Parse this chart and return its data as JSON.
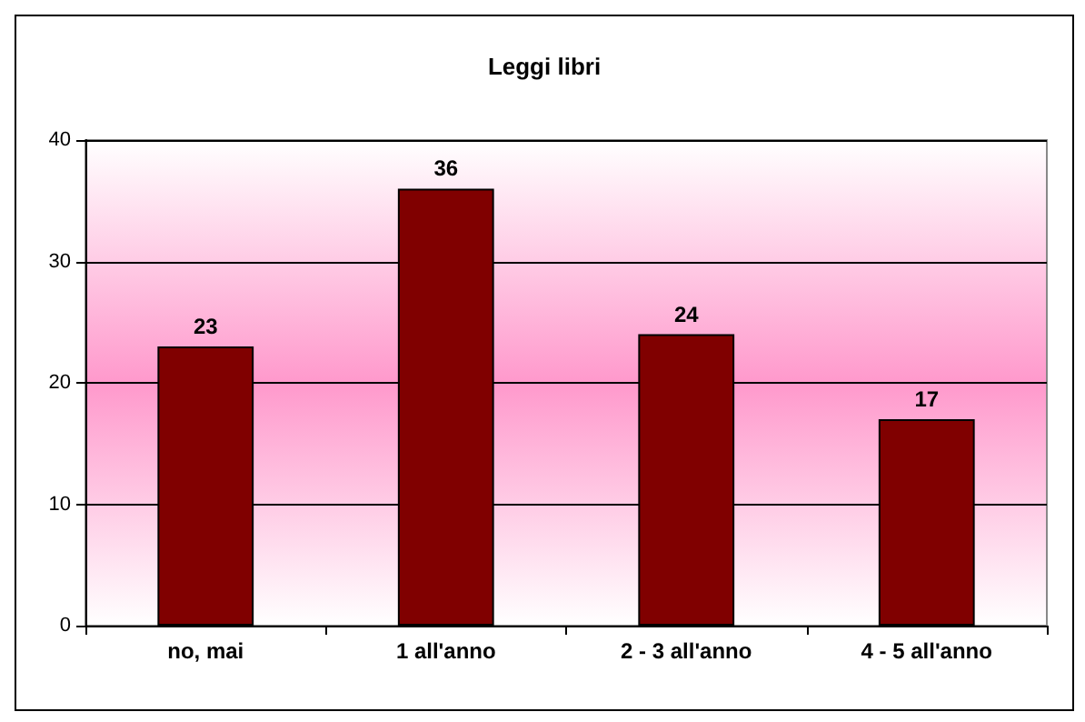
{
  "chart_data": {
    "type": "bar",
    "title": "Leggi libri",
    "categories": [
      "no, mai",
      "1 all'anno",
      "2 - 3 all'anno",
      "4 - 5 all'anno"
    ],
    "values": [
      23,
      36,
      24,
      17
    ],
    "color": "#800000",
    "ylim": [
      0,
      40
    ],
    "yticks": [
      0,
      10,
      20,
      30,
      40
    ],
    "grid": "y",
    "data_labels": true
  }
}
